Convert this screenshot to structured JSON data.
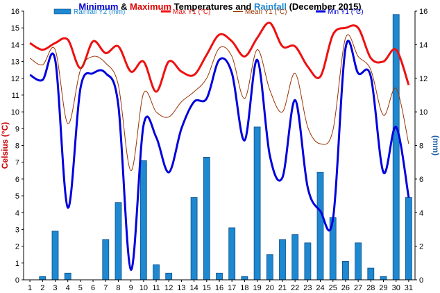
{
  "chart_data": {
    "type": "line",
    "title_parts": [
      {
        "text": "Minimum",
        "color": "#0000CC"
      },
      {
        "text": " & ",
        "color": "#000000"
      },
      {
        "text": "Maximum",
        "color": "#DD0000"
      },
      {
        "text": " Temperatures and ",
        "color": "#000000"
      },
      {
        "text": "Rainfall",
        "color": "#1E88D0"
      },
      {
        "text": " (December 2015)",
        "color": "#000000"
      }
    ],
    "ylabel": "Celsius (°C)",
    "y2label": "(mm)",
    "ylim": [
      0,
      16
    ],
    "y2lim": [
      0,
      16
    ],
    "yticks": [
      "0",
      "1",
      "2",
      "3",
      "4",
      "5",
      "6",
      "7",
      "8",
      "9",
      "10",
      "11",
      "12",
      "13",
      "14",
      "15",
      "16"
    ],
    "y2ticks": [
      "0",
      "2",
      "4",
      "6",
      "8",
      "10",
      "12",
      "14",
      "16"
    ],
    "x": [
      "1",
      "2",
      "3",
      "4",
      "5",
      "6",
      "7",
      "8",
      "9",
      "10",
      "11",
      "12",
      "13",
      "14",
      "15",
      "16",
      "17",
      "18",
      "19",
      "20",
      "21",
      "22",
      "23",
      "24",
      "25",
      "26",
      "27",
      "28",
      "29",
      "30",
      "31"
    ],
    "grid": false,
    "legend_position": "top",
    "series": [
      {
        "name": "Rainfall Y2 (mm)",
        "type": "bar",
        "axis": "y2",
        "color": "#1E88D0",
        "values": [
          0,
          0.2,
          2.9,
          0.4,
          0,
          0,
          2.4,
          4.6,
          0,
          7.1,
          0.9,
          0.4,
          0,
          4.9,
          7.3,
          0.4,
          3.1,
          0.2,
          9.1,
          1.5,
          2.4,
          2.7,
          2.2,
          6.4,
          3.7,
          1.1,
          2.2,
          0.7,
          0.2,
          15.8,
          4.9
        ]
      },
      {
        "name": "Max Y1 (°C)",
        "type": "line",
        "axis": "y",
        "color": "#EE1111",
        "values": [
          14.1,
          13.7,
          14.1,
          14.3,
          12.6,
          14.2,
          13.5,
          13.9,
          12.4,
          13.0,
          11.2,
          13.0,
          12.4,
          12.2,
          13.4,
          14.6,
          14.2,
          13.3,
          14.4,
          15.3,
          13.9,
          13.9,
          12.7,
          12.1,
          14.6,
          15.0,
          15.0,
          13.2,
          13.0,
          13.7,
          11.6
        ]
      },
      {
        "name": "Mean Y1 (°C)",
        "type": "line",
        "axis": "y",
        "color": "#993300",
        "values": [
          13.2,
          12.8,
          13.7,
          9.3,
          12.5,
          13.3,
          12.9,
          11.6,
          6.5,
          11.1,
          10.0,
          9.7,
          10.6,
          11.2,
          12.0,
          13.8,
          13.3,
          10.8,
          13.7,
          11.3,
          10.0,
          12.3,
          9.1,
          8.1,
          8.9,
          14.4,
          13.3,
          12.5,
          9.8,
          11.4,
          8.1
        ]
      },
      {
        "name": "Min Y1 (°C)",
        "type": "line",
        "axis": "y",
        "color": "#0000DD",
        "values": [
          12.2,
          11.9,
          13.1,
          4.3,
          11.4,
          12.3,
          12.3,
          10.4,
          0.6,
          9.2,
          8.5,
          6.4,
          9.0,
          10.6,
          10.8,
          13.1,
          12.3,
          8.3,
          13.1,
          7.4,
          6.1,
          10.7,
          5.5,
          4.1,
          3.6,
          13.8,
          12.3,
          12.1,
          6.4,
          9.1,
          4.9
        ]
      }
    ]
  }
}
